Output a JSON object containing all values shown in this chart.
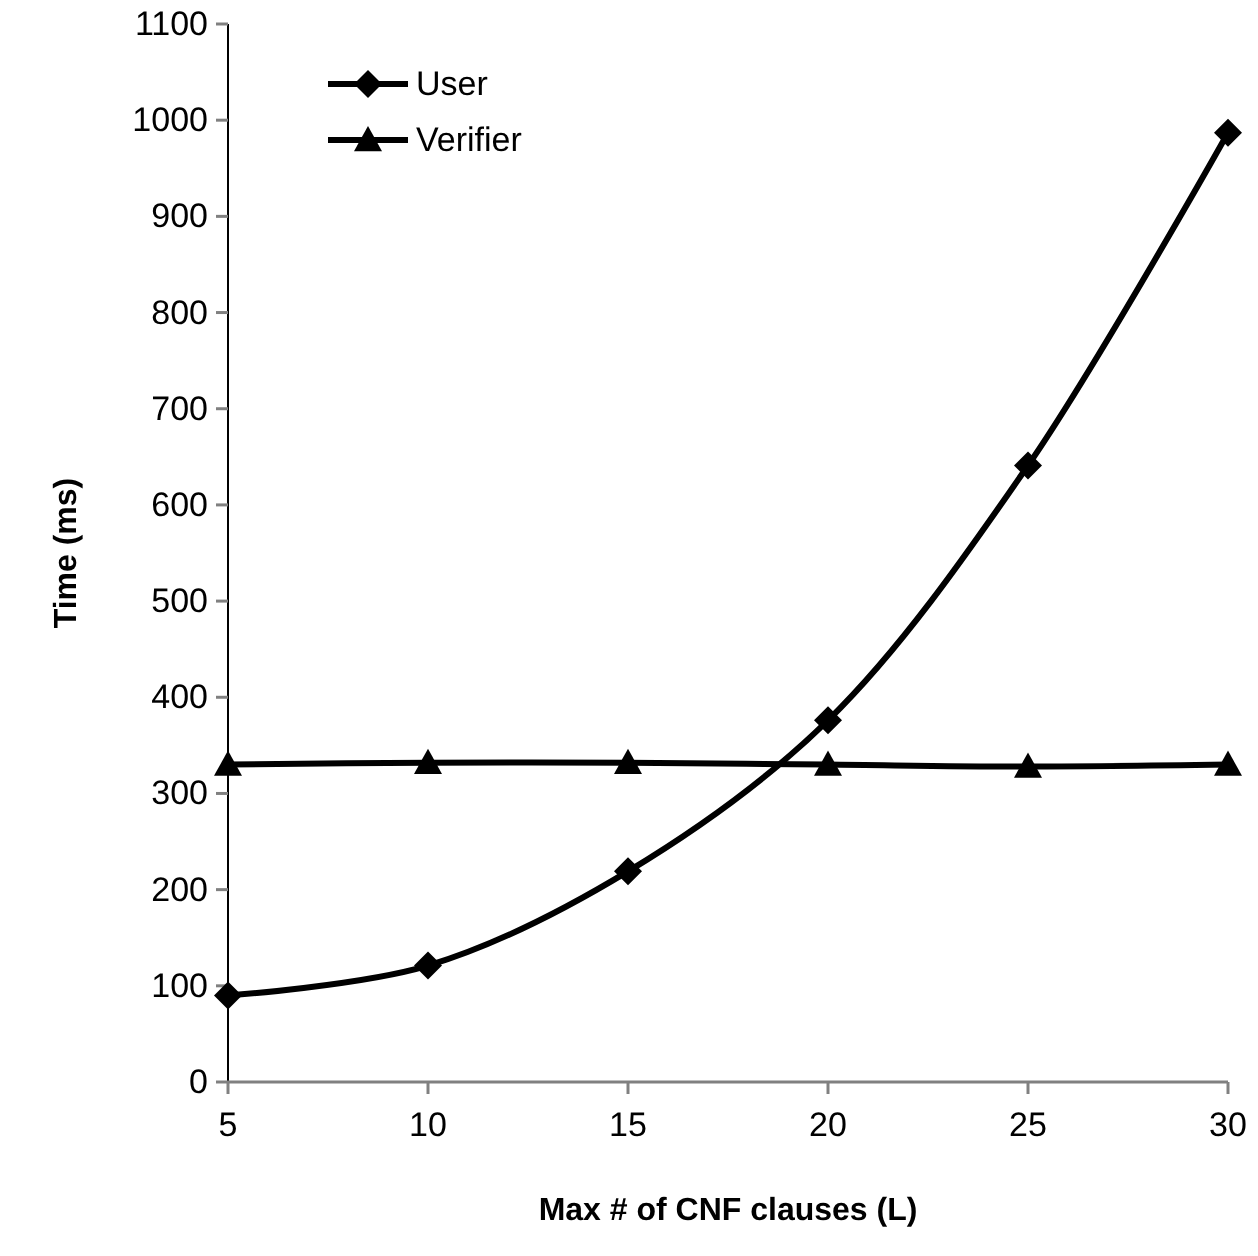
{
  "chart_data": {
    "type": "line",
    "xlabel": "Max # of CNF clauses (L)",
    "ylabel": "Time (ms)",
    "x": [
      5,
      10,
      15,
      20,
      25,
      30
    ],
    "xlim": [
      5,
      30
    ],
    "xticks": [
      5,
      10,
      15,
      20,
      25,
      30
    ],
    "ylim": [
      0,
      1100
    ],
    "yticks": [
      0,
      100,
      200,
      300,
      400,
      500,
      600,
      700,
      800,
      900,
      1000,
      1100
    ],
    "grid": false,
    "legend": "top left",
    "line_style": "solid",
    "series": [
      {
        "name": "User",
        "color": "#000000",
        "marker": "diamond",
        "values": [
          90,
          121,
          219,
          376,
          641,
          987
        ]
      },
      {
        "name": "Verifier",
        "color": "#000000",
        "marker": "triangle",
        "values": [
          330,
          332,
          332,
          330,
          328,
          330
        ]
      }
    ]
  }
}
